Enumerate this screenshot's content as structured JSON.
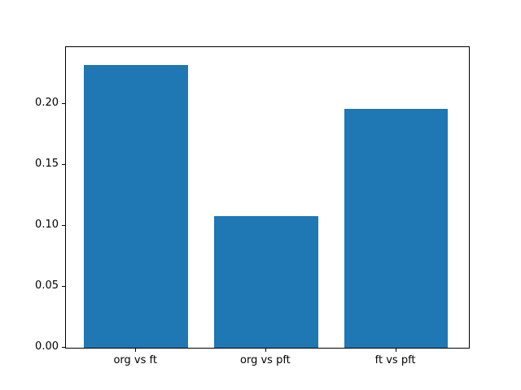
{
  "chart_data": {
    "type": "bar",
    "title": "",
    "xlabel": "",
    "ylabel": "",
    "categories": [
      "org vs ft",
      "org vs pft",
      "ft vs pft"
    ],
    "values": [
      0.232,
      0.108,
      0.196
    ],
    "bar_color": "#1f77b4",
    "bar_width": 0.8,
    "xlim": [
      -0.54,
      2.56
    ],
    "ylim": [
      0,
      0.2467
    ],
    "yticks": [
      0,
      0.05,
      0.1,
      0.15,
      0.2
    ],
    "ytick_labels": [
      "0.00",
      "0.05",
      "0.10",
      "0.15",
      "0.20"
    ],
    "grid": false,
    "legend_position": "none",
    "background_color": "#ffffff",
    "axis_color": "#000000"
  }
}
